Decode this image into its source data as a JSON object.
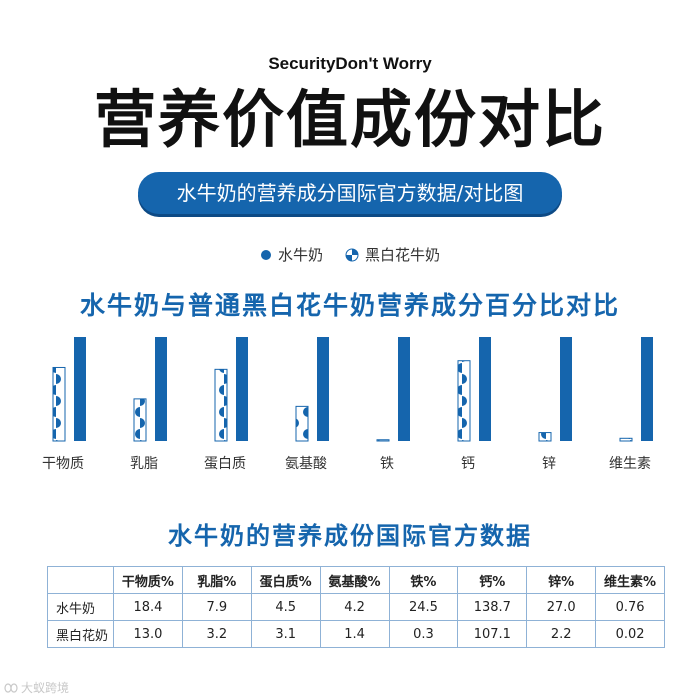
{
  "header": {
    "tagline": "SecurityDon't Worry",
    "title": "营养价值成份对比",
    "subtitle": "水牛奶的营养成分国际官方数据/对比图"
  },
  "legend": {
    "items": [
      "水牛奶",
      "黑白花牛奶"
    ]
  },
  "colors": {
    "primary": "#1565ad",
    "border": "#8fb2d6"
  },
  "chart_data": {
    "type": "bar",
    "title": "水牛奶与普通黑白花牛奶营养成分百分比对比",
    "categories": [
      "干物质",
      "乳脂",
      "蛋白质",
      "氨基酸",
      "铁",
      "钙",
      "锌",
      "维生素"
    ],
    "series": [
      {
        "name": "水牛奶",
        "values": [
          100,
          100,
          100,
          100,
          100,
          100,
          100,
          100
        ]
      },
      {
        "name": "黑白花牛奶",
        "values": [
          70.7,
          40.5,
          68.9,
          33.3,
          1.2,
          77.2,
          8.1,
          2.6
        ]
      }
    ],
    "xlabel": "",
    "ylabel": "",
    "ylim": [
      0,
      100
    ],
    "grid": false,
    "legend": "top-center"
  },
  "table": {
    "title": "水牛奶的营养成份国际官方数据",
    "headers": [
      "",
      "干物质%",
      "乳脂%",
      "蛋白质%",
      "氨基酸%",
      "铁%",
      "钙%",
      "锌%",
      "维生素%"
    ],
    "rows": [
      [
        "水牛奶",
        "18.4",
        "7.9",
        "4.5",
        "4.2",
        "24.5",
        "138.7",
        "27.0",
        "0.76"
      ],
      [
        "黑白花奶",
        "13.0",
        "3.2",
        "3.1",
        "1.4",
        "0.3",
        "107.1",
        "2.2",
        "0.02"
      ]
    ]
  },
  "watermark": {
    "text": "大蚁跨境"
  }
}
